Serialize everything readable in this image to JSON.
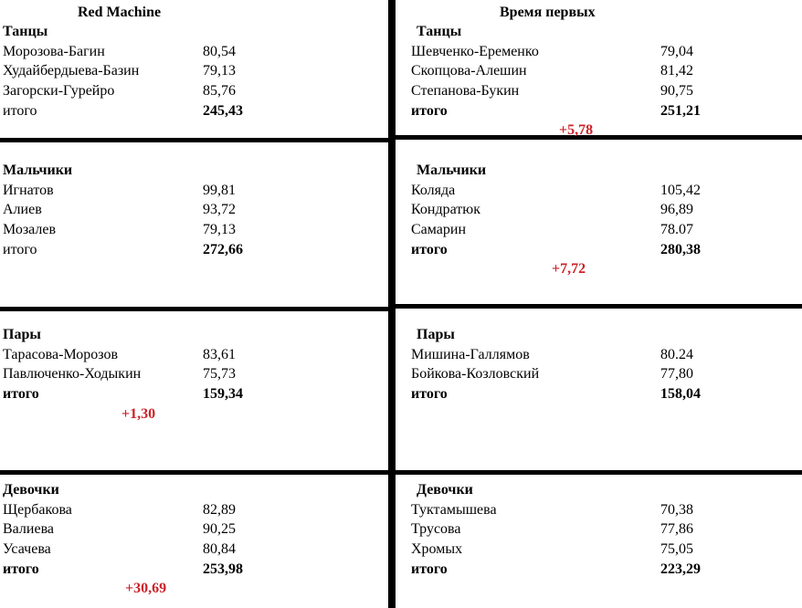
{
  "left_team": "Red Machine",
  "right_team": "Время первых",
  "total_label": "итого",
  "accent_color": "#cc2229",
  "line_color": "#000000",
  "background_color": "#ffffff",
  "sections": [
    {
      "title": "Танцы",
      "left": {
        "rows": [
          {
            "name": "Морозова-Багин",
            "score": "80,54"
          },
          {
            "name": "Худайбердыева-Базин",
            "score": "79,13"
          },
          {
            "name": "Загорски-Гурейро",
            "score": "85,76"
          }
        ],
        "total": "245,43",
        "diff": ""
      },
      "right": {
        "rows": [
          {
            "name": "Шевченко-Еременко",
            "score": "79,04"
          },
          {
            "name": "Скопцова-Алешин",
            "score": "81,42"
          },
          {
            "name": "Степанова-Букин",
            "score": "90,75"
          }
        ],
        "total": "251,21",
        "diff": "+5,78"
      }
    },
    {
      "title": "Мальчики",
      "left": {
        "rows": [
          {
            "name": "Игнатов",
            "score": "99,81"
          },
          {
            "name": "Алиев",
            "score": "93,72"
          },
          {
            "name": "Мозалев",
            "score": "79,13"
          }
        ],
        "total": "272,66",
        "diff": ""
      },
      "right": {
        "rows": [
          {
            "name": "Коляда",
            "score": "105,42"
          },
          {
            "name": "Кондратюк",
            "score": "96,89"
          },
          {
            "name": "Самарин",
            "score": "78.07"
          }
        ],
        "total": "280,38",
        "diff": "+7,72"
      }
    },
    {
      "title": "Пары",
      "left": {
        "rows": [
          {
            "name": "Тарасова-Морозов",
            "score": "83,61"
          },
          {
            "name": "Павлюченко-Ходыкин",
            "score": "75,73"
          }
        ],
        "total": "159,34",
        "diff": "+1,30"
      },
      "right": {
        "rows": [
          {
            "name": "Мишина-Галлямов",
            "score": "80.24"
          },
          {
            "name": "Бойкова-Козловский",
            "score": "77,80"
          }
        ],
        "total": "158,04",
        "diff": ""
      }
    },
    {
      "title": "Девочки",
      "left": {
        "rows": [
          {
            "name": "Щербакова",
            "score": "82,89"
          },
          {
            "name": "Валиева",
            "score": "90,25"
          },
          {
            "name": "Усачева",
            "score": "80,84"
          }
        ],
        "total": "253,98",
        "diff": "+30,69"
      },
      "right": {
        "rows": [
          {
            "name": "Туктамышева",
            "score": "70,38"
          },
          {
            "name": "Трусова",
            "score": "77,86"
          },
          {
            "name": "Хромых",
            "score": "75,05"
          }
        ],
        "total": "223,29",
        "diff": ""
      }
    }
  ]
}
